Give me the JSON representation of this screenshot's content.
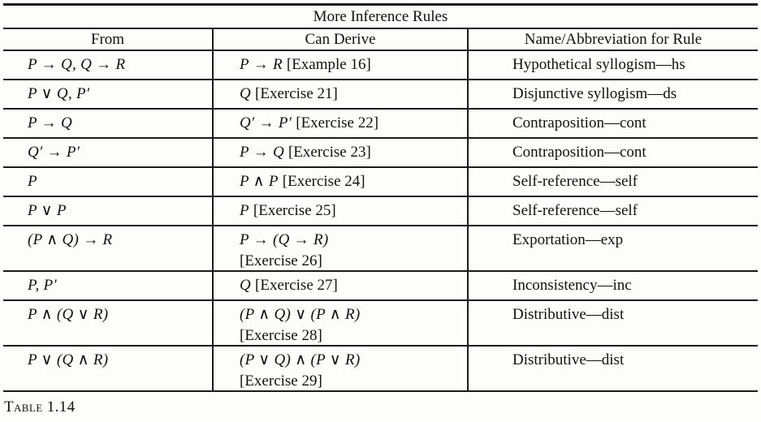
{
  "table": {
    "title": "More Inference Rules",
    "headers": [
      "From",
      "Can Derive",
      "Name/Abbreviation for Rule"
    ],
    "rows": [
      {
        "from": "P → Q, Q → R",
        "derive": "P → R",
        "ref": "[Example 16]",
        "name": "Hypothetical syllogism—hs"
      },
      {
        "from": "P ∨ Q, P′",
        "derive": "Q",
        "ref": "[Exercise 21]",
        "name": "Disjunctive syllogism—ds"
      },
      {
        "from": "P → Q",
        "derive": "Q′ → P′",
        "ref": "[Exercise 22]",
        "name": "Contraposition—cont"
      },
      {
        "from": "Q′ → P′",
        "derive": "P → Q",
        "ref": "[Exercise 23]",
        "name": "Contraposition—cont"
      },
      {
        "from": "P",
        "derive": "P ∧ P",
        "ref": "[Exercise 24]",
        "name": "Self-reference—self"
      },
      {
        "from": "P ∨ P",
        "derive": "P",
        "ref": "[Exercise 25]",
        "name": "Self-reference—self"
      },
      {
        "from": "(P ∧ Q) → R",
        "derive": "P → (Q → R)",
        "ref": "[Exercise 26]",
        "name": "Exportation—exp"
      },
      {
        "from": "P, P′",
        "derive": "Q",
        "ref": "[Exercise 27]",
        "name": "Inconsistency—inc"
      },
      {
        "from": "P ∧ (Q ∨ R)",
        "derive": "(P ∧ Q) ∨ (P ∧ R)",
        "ref": "[Exercise 28]",
        "name": "Distributive—dist"
      },
      {
        "from": "P ∨ (Q ∧ R)",
        "derive": "(P ∨ Q) ∧ (P ∨ R)",
        "ref": "[Exercise 29]",
        "name": "Distributive—dist"
      }
    ]
  },
  "caption": "Table 1.14"
}
